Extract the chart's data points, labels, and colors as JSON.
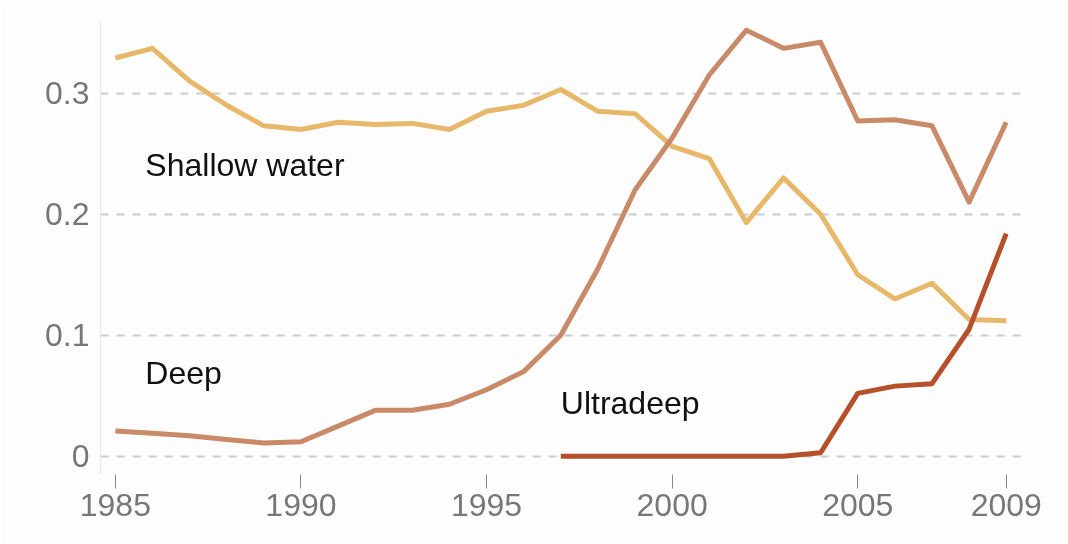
{
  "chart_data": {
    "type": "line",
    "x": [
      1985,
      1986,
      1987,
      1988,
      1989,
      1990,
      1991,
      1992,
      1993,
      1994,
      1995,
      1996,
      1997,
      1998,
      1999,
      2000,
      2001,
      2002,
      2003,
      2004,
      2005,
      2006,
      2007,
      2008,
      2009
    ],
    "series": [
      {
        "name": "Shallow water",
        "color": "#e8b86a",
        "values": [
          0.329,
          0.337,
          0.31,
          0.29,
          0.273,
          0.27,
          0.276,
          0.274,
          0.275,
          0.27,
          0.285,
          0.29,
          0.303,
          0.285,
          0.283,
          0.256,
          0.246,
          0.193,
          0.23,
          0.2,
          0.15,
          0.13,
          0.143,
          0.113,
          0.112
        ]
      },
      {
        "name": "Deep",
        "color": "#c98a68",
        "values": [
          0.021,
          0.019,
          0.017,
          0.014,
          0.011,
          0.012,
          0.025,
          0.038,
          0.038,
          0.043,
          0.055,
          0.07,
          0.1,
          0.155,
          0.22,
          0.263,
          0.315,
          0.352,
          0.337,
          0.342,
          0.277,
          0.278,
          0.273,
          0.21,
          0.276
        ]
      },
      {
        "name": "Ultradeep",
        "color": "#b5502a",
        "values": [
          null,
          null,
          null,
          null,
          null,
          null,
          null,
          null,
          null,
          null,
          null,
          null,
          0,
          0,
          0,
          0,
          0,
          0,
          0,
          0.003,
          0.052,
          0.058,
          0.06,
          0.105,
          0.184
        ]
      }
    ],
    "xlim": [
      1984.6,
      2009.6
    ],
    "xticks": [
      1985,
      1990,
      1995,
      2000,
      2005,
      2009
    ],
    "ylim": [
      -0.015,
      0.36
    ],
    "yticks": [
      0,
      0.1,
      0.2,
      0.3
    ],
    "grid": "y",
    "marker": "none",
    "line_style": "solid"
  }
}
